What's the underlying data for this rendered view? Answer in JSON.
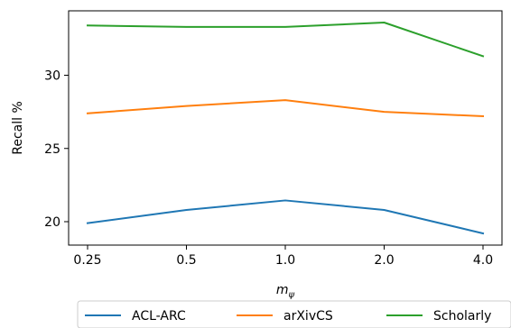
{
  "chart_data": {
    "type": "line",
    "categories": [
      "0.25",
      "0.5",
      "1.0",
      "2.0",
      "4.0"
    ],
    "series": [
      {
        "name": "ACL-ARC",
        "color": "#1f77b4",
        "values": [
          19.9,
          20.8,
          21.45,
          20.8,
          19.2
        ]
      },
      {
        "name": "arXivCS",
        "color": "#ff7f0e",
        "values": [
          27.4,
          27.9,
          28.3,
          27.5,
          27.2
        ]
      },
      {
        "name": "Scholarly",
        "color": "#2ca02c",
        "values": [
          33.4,
          33.3,
          33.3,
          33.6,
          31.3
        ]
      }
    ],
    "xlabel_base": "m",
    "xlabel_sub": "ψ",
    "ylabel": "Recall %",
    "yticks": [
      20,
      25,
      30
    ],
    "ylim": [
      18.4,
      34.4
    ],
    "grid": false,
    "legend_placement": "bottom-outside"
  }
}
